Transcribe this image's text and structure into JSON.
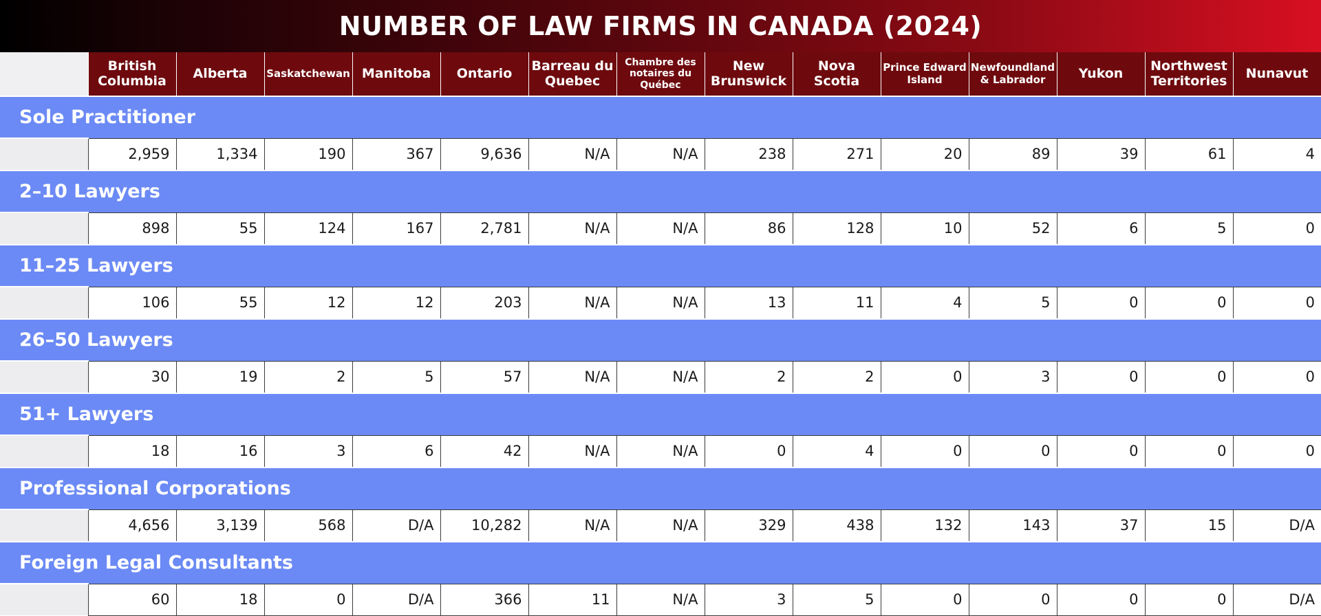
{
  "title": "NUMBER OF LAW FIRMS IN CANADA (2024)",
  "colors": {
    "title_gradient_start": "#000000",
    "title_gradient_end": "#d80f22",
    "header_bg": "#6e0a0e",
    "section_bg": "#6b8af5"
  },
  "columns": [
    "British Columbia",
    "Alberta",
    "Saskatchewan",
    "Manitoba",
    "Ontario",
    "Barreau du Quebec",
    "Chambre des notaires du Québec",
    "New Brunswick",
    "Nova Scotia",
    "Prince Edward Island",
    "Newfoundland & Labrador",
    "Yukon",
    "Northwest Territories",
    "Nunavut"
  ],
  "rows": [
    {
      "label": "Sole Practitioner",
      "values": [
        "2,959",
        "1,334",
        "190",
        "367",
        "9,636",
        "N/A",
        "N/A",
        "238",
        "271",
        "20",
        "89",
        "39",
        "61",
        "4"
      ]
    },
    {
      "label": "2–10 Lawyers",
      "values": [
        "898",
        "55",
        "124",
        "167",
        "2,781",
        "N/A",
        "N/A",
        "86",
        "128",
        "10",
        "52",
        "6",
        "5",
        "0"
      ]
    },
    {
      "label": "11–25 Lawyers",
      "values": [
        "106",
        "55",
        "12",
        "12",
        "203",
        "N/A",
        "N/A",
        "13",
        "11",
        "4",
        "5",
        "0",
        "0",
        "0"
      ]
    },
    {
      "label": "26–50 Lawyers",
      "values": [
        "30",
        "19",
        "2",
        "5",
        "57",
        "N/A",
        "N/A",
        "2",
        "2",
        "0",
        "3",
        "0",
        "0",
        "0"
      ]
    },
    {
      "label": "51+ Lawyers",
      "values": [
        "18",
        "16",
        "3",
        "6",
        "42",
        "N/A",
        "N/A",
        "0",
        "4",
        "0",
        "0",
        "0",
        "0",
        "0"
      ]
    },
    {
      "label": "Professional Corporations",
      "values": [
        "4,656",
        "3,139",
        "568",
        "D/A",
        "10,282",
        "N/A",
        "N/A",
        "329",
        "438",
        "132",
        "143",
        "37",
        "15",
        "D/A"
      ]
    },
    {
      "label": "Foreign Legal Consultants",
      "values": [
        "60",
        "18",
        "0",
        "D/A",
        "366",
        "11",
        "N/A",
        "3",
        "5",
        "0",
        "0",
        "0",
        "0",
        "D/A"
      ]
    }
  ],
  "chart_data": {
    "type": "table",
    "title": "NUMBER OF LAW FIRMS IN CANADA (2024)",
    "categories": [
      "British Columbia",
      "Alberta",
      "Saskatchewan",
      "Manitoba",
      "Ontario",
      "Barreau du Quebec",
      "Chambre des notaires du Québec",
      "New Brunswick",
      "Nova Scotia",
      "Prince Edward Island",
      "Newfoundland & Labrador",
      "Yukon",
      "Northwest Territories",
      "Nunavut"
    ],
    "series": [
      {
        "name": "Sole Practitioner",
        "values": [
          "2,959",
          "1,334",
          "190",
          "367",
          "9,636",
          "N/A",
          "N/A",
          "238",
          "271",
          "20",
          "89",
          "39",
          "61",
          "4"
        ]
      },
      {
        "name": "2–10 Lawyers",
        "values": [
          "898",
          "55",
          "124",
          "167",
          "2,781",
          "N/A",
          "N/A",
          "86",
          "128",
          "10",
          "52",
          "6",
          "5",
          "0"
        ]
      },
      {
        "name": "11–25 Lawyers",
        "values": [
          "106",
          "55",
          "12",
          "12",
          "203",
          "N/A",
          "N/A",
          "13",
          "11",
          "4",
          "5",
          "0",
          "0",
          "0"
        ]
      },
      {
        "name": "26–50 Lawyers",
        "values": [
          "30",
          "19",
          "2",
          "5",
          "57",
          "N/A",
          "N/A",
          "2",
          "2",
          "0",
          "3",
          "0",
          "0",
          "0"
        ]
      },
      {
        "name": "51+ Lawyers",
        "values": [
          "18",
          "16",
          "3",
          "6",
          "42",
          "N/A",
          "N/A",
          "0",
          "4",
          "0",
          "0",
          "0",
          "0",
          "0"
        ]
      },
      {
        "name": "Professional Corporations",
        "values": [
          "4,656",
          "3,139",
          "568",
          "D/A",
          "10,282",
          "N/A",
          "N/A",
          "329",
          "438",
          "132",
          "143",
          "37",
          "15",
          "D/A"
        ]
      },
      {
        "name": "Foreign Legal Consultants",
        "values": [
          "60",
          "18",
          "0",
          "D/A",
          "366",
          "11",
          "N/A",
          "3",
          "5",
          "0",
          "0",
          "0",
          "0",
          "D/A"
        ]
      }
    ]
  }
}
